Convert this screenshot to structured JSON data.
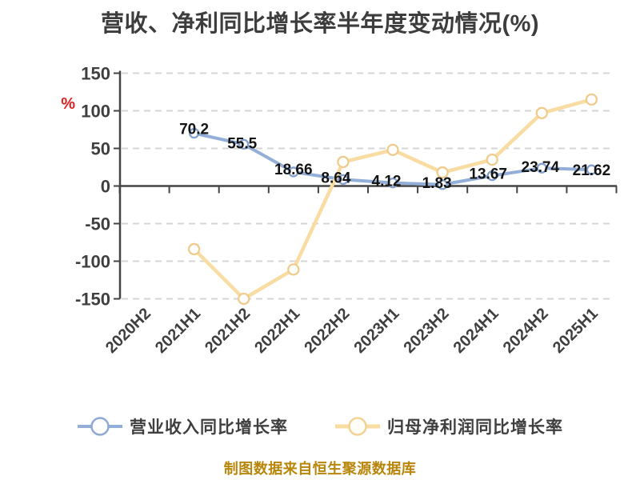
{
  "title": "营收、净利同比增长率半年度变动情况(%)",
  "footer": "制图数据来自恒生聚源数据库",
  "legend": {
    "items": [
      {
        "id": "revenue",
        "label": "营业收入同比增长率"
      },
      {
        "id": "net-profit",
        "label": "归母净利润同比增长率"
      }
    ]
  },
  "colors": {
    "revenue_line": "#94afd7",
    "revenue_marker_stroke": "#84a0cc",
    "profit_line": "#f8dca2",
    "profit_marker_stroke": "#efcb8d",
    "marker_fill": "#ffffff",
    "title_text": "#3d3d3d",
    "axis": "#444444",
    "tick_label": "#3f3f3f",
    "grid": "#d6d6d6",
    "data_label": "#141414",
    "unit_percent": "#e02020",
    "footer_text": "#b8860b"
  },
  "y_axis": {
    "unit": "%",
    "ticks": [
      150,
      100,
      50,
      0,
      -50,
      -100,
      -150
    ],
    "min": -150,
    "max": 150
  },
  "chart_data": {
    "type": "line",
    "title": "营收、净利同比增长率半年度变动情况(%)",
    "categories": [
      "2020H2",
      "2021H1",
      "2021H2",
      "2022H1",
      "2022H2",
      "2023H1",
      "2023H2",
      "2024H1",
      "2024H2",
      "2025H1"
    ],
    "xlabel": "",
    "ylabel": "%",
    "ylim": [
      -150,
      150
    ],
    "y_ticks": [
      150,
      100,
      50,
      0,
      -50,
      -100,
      -150
    ],
    "grid": "horizontal-dashed",
    "legend_position": "bottom",
    "series": [
      {
        "name": "营业收入同比增长率",
        "color": "#94afd7",
        "start_index": 1,
        "values": [
          70.2,
          55.5,
          18.66,
          8.64,
          4.12,
          1.83,
          13.67,
          23.74,
          21.62
        ],
        "value_labels": [
          "70.2",
          "55.5",
          "18.66",
          "8.64",
          "4.12",
          "1.83",
          "13.67",
          "23.74",
          "21.62"
        ],
        "show_labels": true,
        "label_offsets": [
          [
            0,
            -6
          ],
          [
            -2,
            -2
          ],
          [
            0,
            -4
          ],
          [
            -9,
            -3
          ],
          [
            -8,
            -3
          ],
          [
            -7,
            -3
          ],
          [
            -5,
            -3
          ],
          [
            -2,
            -2
          ],
          [
            0,
            0
          ]
        ]
      },
      {
        "name": "归母净利润同比增长率",
        "color": "#f8dca2",
        "start_index": 1,
        "values": [
          -84,
          -150,
          -111,
          32,
          48,
          18,
          35,
          97,
          115
        ],
        "values_estimated": true,
        "show_labels": false
      }
    ]
  }
}
